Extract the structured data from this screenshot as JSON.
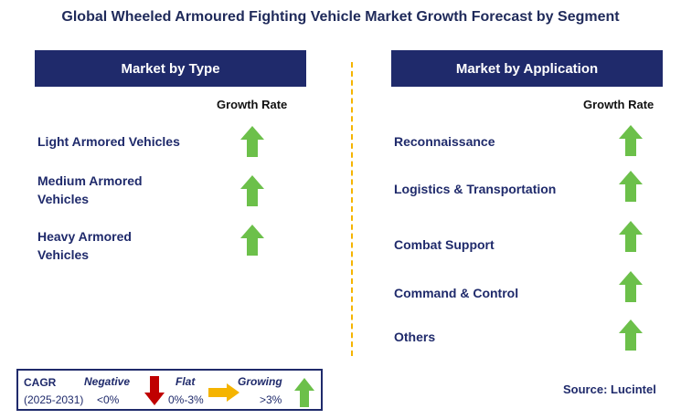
{
  "title": "Global Wheeled Armoured Fighting Vehicle Market Growth Forecast by Segment",
  "left_panel": {
    "header": "Market by Type",
    "column_label": "Growth Rate",
    "items": [
      {
        "label_lines": [
          "Light Armored Vehicles"
        ],
        "trend": "growing"
      },
      {
        "label_lines": [
          "Medium Armored",
          "Vehicles"
        ],
        "trend": "growing"
      },
      {
        "label_lines": [
          "Heavy Armored",
          "Vehicles"
        ],
        "trend": "growing"
      }
    ]
  },
  "right_panel": {
    "header": "Market by Application",
    "column_label": "Growth Rate",
    "items": [
      {
        "label_lines": [
          "Reconnaissance"
        ],
        "trend": "growing"
      },
      {
        "label_lines": [
          "Logistics & Transportation"
        ],
        "trend": "growing"
      },
      {
        "label_lines": [
          "Combat Support"
        ],
        "trend": "growing"
      },
      {
        "label_lines": [
          "Command & Control"
        ],
        "trend": "growing"
      },
      {
        "label_lines": [
          "Others"
        ],
        "trend": "growing"
      }
    ]
  },
  "legend": {
    "cagr_label": "CAGR",
    "period": "(2025-2031)",
    "negative": {
      "label": "Negative",
      "range": "<0%"
    },
    "flat": {
      "label": "Flat",
      "range": "0%-3%"
    },
    "growing": {
      "label": "Growing",
      "range": ">3%"
    }
  },
  "source": "Source: Lucintel",
  "colors": {
    "navy": "#1f2a6b",
    "growing_green": "#6cc04a",
    "negative_red": "#c00000",
    "flat_yellow": "#f5b400",
    "divider": "#f5b400"
  }
}
